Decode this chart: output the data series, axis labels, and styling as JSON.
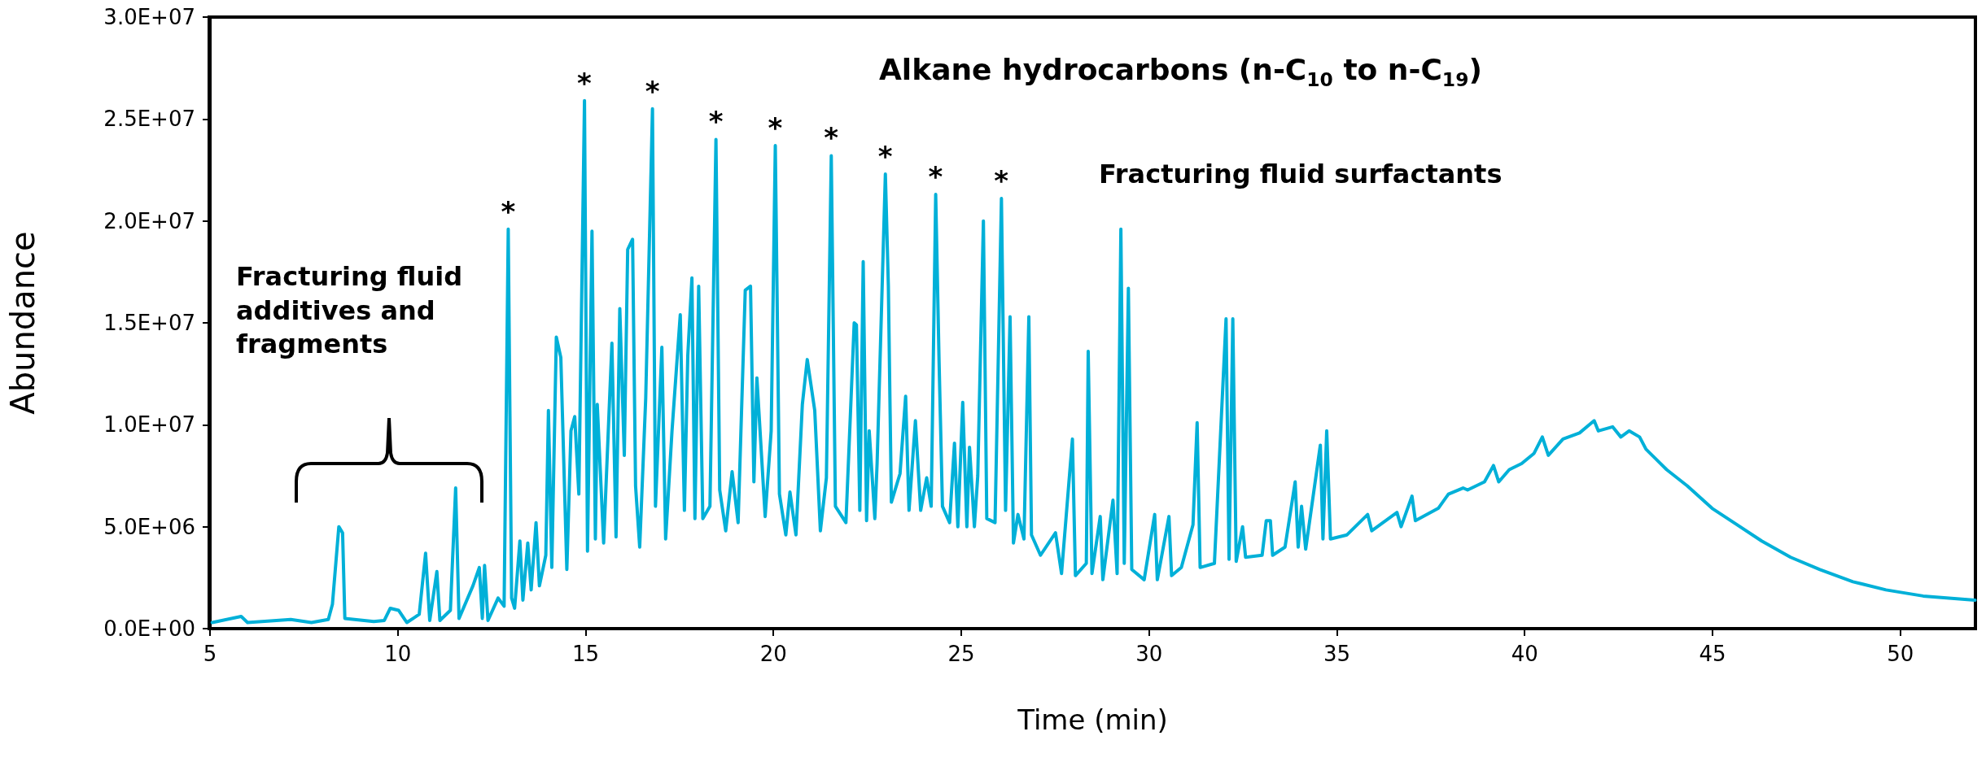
{
  "chart_data": {
    "type": "line",
    "xlabel": "Time (min)",
    "ylabel": "Abundance",
    "annotations": [
      "Alkane hydrocarbons (n-C$_{10}$ to n-C$_{19}$)",
      "Fracturing fluid surfactants",
      "Fracturing fluid additives and fragments",
      {
        "text": "*",
        "x": 12.94,
        "y": 19600000
      },
      {
        "text": "*",
        "x": 14.97,
        "y": 25900000
      },
      {
        "text": "*",
        "x": 16.78,
        "y": 25500000
      },
      {
        "text": "*",
        "x": 18.47,
        "y": 24000000
      },
      {
        "text": "*",
        "x": 20.05,
        "y": 23700000
      },
      {
        "text": "*",
        "x": 21.54,
        "y": 23200000
      },
      {
        "text": "*",
        "x": 22.98,
        "y": 22300000
      },
      {
        "text": "*",
        "x": 24.32,
        "y": 21300000
      },
      {
        "text": "*",
        "x": 26.07,
        "y": 21100000
      }
    ],
    "series": [
      {
        "color": "#00b0d8",
        "x": [
          5.06,
          5.83,
          6.0,
          7.15,
          7.7,
          8.15,
          8.26,
          8.43,
          8.53,
          8.59,
          9.36,
          9.64,
          9.8,
          10.02,
          10.24,
          10.57,
          10.74,
          10.85,
          11.04,
          11.12,
          11.4,
          11.54,
          11.63,
          12.0,
          12.17,
          12.25,
          12.31,
          12.4,
          12.67,
          12.83,
          12.94,
          13.03,
          13.11,
          13.25,
          13.33,
          13.46,
          13.55,
          13.68,
          13.77,
          13.94,
          14.01,
          14.1,
          14.22,
          14.34,
          14.5,
          14.61,
          14.71,
          14.82,
          14.97,
          15.05,
          15.17,
          15.26,
          15.31,
          15.48,
          15.7,
          15.81,
          15.91,
          16.03,
          16.12,
          16.25,
          16.33,
          16.44,
          16.6,
          16.78,
          16.86,
          17.03,
          17.13,
          17.3,
          17.52,
          17.63,
          17.72,
          17.83,
          17.91,
          18.01,
          18.12,
          18.31,
          18.47,
          18.57,
          18.73,
          18.9,
          19.06,
          19.25,
          19.39,
          19.48,
          19.56,
          19.78,
          19.94,
          20.05,
          20.16,
          20.33,
          20.44,
          20.6,
          20.77,
          20.9,
          21.1,
          21.25,
          21.41,
          21.54,
          21.65,
          21.93,
          22.15,
          22.21,
          22.3,
          22.39,
          22.48,
          22.55,
          22.7,
          22.76,
          22.98,
          23.06,
          23.14,
          23.37,
          23.52,
          23.61,
          23.78,
          23.92,
          24.08,
          24.2,
          24.32,
          24.41,
          24.5,
          24.69,
          24.82,
          24.91,
          25.04,
          25.15,
          25.22,
          25.35,
          25.44,
          25.59,
          25.68,
          25.9,
          26.07,
          26.18,
          26.3,
          26.39,
          26.51,
          26.67,
          26.8,
          26.87,
          27.11,
          27.51,
          27.67,
          27.96,
          28.04,
          28.33,
          28.38,
          28.48,
          28.7,
          28.77,
          29.04,
          29.15,
          29.25,
          29.34,
          29.45,
          29.54,
          29.87,
          30.15,
          30.22,
          30.53,
          30.6,
          30.86,
          31.17,
          31.28,
          31.36,
          31.74,
          32.05,
          32.13,
          32.23,
          32.32,
          32.49,
          32.57,
          33.01,
          33.12,
          33.23,
          33.29,
          33.62,
          33.89,
          33.97,
          34.06,
          34.17,
          34.56,
          34.63,
          34.73,
          34.83,
          35.27,
          35.82,
          35.93,
          36.6,
          36.71,
          37.0,
          37.09,
          37.7,
          37.97,
          38.36,
          38.48,
          38.93,
          39.17,
          39.31,
          39.59,
          39.92,
          40.25,
          40.47,
          40.63,
          41.02,
          41.46,
          41.85,
          41.96,
          42.34,
          42.56,
          42.78,
          43.06,
          43.23,
          43.78,
          44.33,
          44.99,
          45.65,
          46.31,
          47.08,
          47.86,
          48.74,
          49.62,
          50.61,
          51.99
        ],
        "values": [
          300000,
          600000,
          300000,
          450000,
          300000,
          450000,
          1200000,
          5000000,
          4700000,
          500000,
          350000,
          400000,
          1000000,
          900000,
          300000,
          700000,
          3700000,
          400000,
          2800000,
          400000,
          900000,
          6900000,
          500000,
          2100000,
          3000000,
          500000,
          3100000,
          400000,
          1500000,
          1100000,
          19600000,
          1500000,
          1000000,
          4300000,
          1400000,
          4200000,
          1900000,
          5200000,
          2100000,
          3600000,
          10700000,
          3000000,
          14300000,
          13300000,
          2900000,
          9700000,
          10400000,
          6600000,
          25900000,
          3800000,
          19500000,
          4400000,
          11000000,
          4200000,
          14000000,
          4500000,
          15700000,
          8500000,
          18600000,
          19100000,
          7000000,
          4000000,
          11300000,
          25500000,
          6000000,
          13800000,
          4400000,
          9700000,
          15400000,
          5800000,
          13400000,
          17200000,
          5400000,
          16800000,
          5400000,
          6000000,
          24000000,
          6800000,
          4800000,
          7700000,
          5200000,
          16600000,
          16800000,
          7200000,
          12300000,
          5500000,
          9700000,
          23700000,
          6600000,
          4600000,
          6700000,
          4600000,
          11000000,
          13200000,
          10700000,
          4800000,
          7400000,
          23200000,
          6000000,
          5200000,
          15000000,
          14900000,
          5800000,
          18000000,
          5300000,
          9700000,
          5400000,
          8100000,
          22300000,
          16800000,
          6200000,
          7600000,
          11400000,
          5800000,
          10200000,
          5800000,
          7400000,
          6000000,
          21300000,
          13100000,
          6000000,
          5200000,
          9100000,
          5000000,
          11100000,
          5000000,
          8900000,
          5000000,
          7500000,
          20000000,
          5400000,
          5200000,
          21100000,
          5800000,
          15300000,
          4200000,
          5600000,
          4400000,
          15300000,
          4600000,
          3600000,
          4700000,
          2700000,
          9300000,
          2600000,
          3200000,
          13600000,
          2700000,
          5500000,
          2400000,
          6300000,
          2700000,
          19600000,
          3200000,
          16700000,
          2900000,
          2400000,
          5600000,
          2400000,
          5500000,
          2600000,
          3000000,
          5100000,
          10100000,
          3000000,
          3200000,
          15200000,
          3400000,
          15200000,
          3300000,
          5000000,
          3500000,
          3600000,
          5300000,
          5300000,
          3600000,
          4000000,
          7200000,
          4000000,
          6000000,
          3900000,
          9000000,
          4400000,
          9700000,
          4400000,
          4600000,
          5600000,
          4800000,
          5700000,
          5000000,
          6500000,
          5300000,
          5900000,
          6600000,
          6900000,
          6800000,
          7200000,
          8000000,
          7200000,
          7800000,
          8100000,
          8600000,
          9400000,
          8500000,
          9300000,
          9600000,
          10200000,
          9700000,
          9900000,
          9400000,
          9700000,
          9400000,
          8800000,
          7800000,
          7000000,
          5900000,
          5100000,
          4300000,
          3500000,
          2900000,
          2300000,
          1900000,
          1600000,
          1400000
        ]
      }
    ],
    "xlim": [
      5,
      52
    ],
    "xticks": [
      5,
      10,
      15,
      20,
      25,
      30,
      35,
      40,
      45,
      50
    ],
    "ylim": [
      0,
      30000000
    ],
    "yticks": [
      {
        "value": 0,
        "label": "0.0E+00"
      },
      {
        "value": 5000000,
        "label": "5.0E+06"
      },
      {
        "value": 10000000,
        "label": "1.0E+07"
      },
      {
        "value": 15000000,
        "label": "1.5E+07"
      },
      {
        "value": 20000000,
        "label": "2.0E+07"
      },
      {
        "value": 25000000,
        "label": "2.5E+07"
      },
      {
        "value": 30000000,
        "label": "3.0E+07"
      }
    ],
    "grid": false,
    "marker": "none",
    "line_style": "solid"
  }
}
